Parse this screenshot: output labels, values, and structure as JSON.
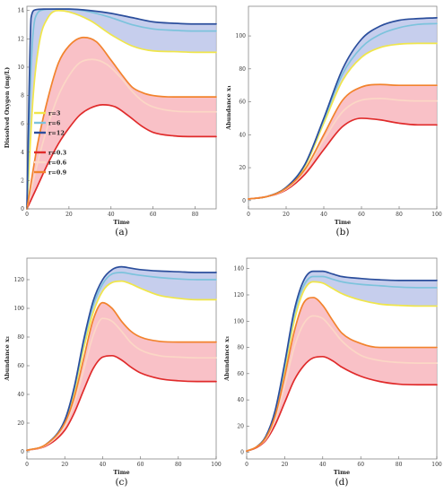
{
  "colors": {
    "r3": "#f0e64a",
    "r6": "#7cc3dc",
    "r12": "#2b4e9c",
    "r03": "#e02b2b",
    "r06": "#fbd7c6",
    "r09": "#f2832d",
    "fill_high": "#bcc6ea",
    "fill_low": "#f8b6bd",
    "frame": "#888888"
  },
  "chart_data": [
    {
      "type": "line",
      "caption": "(a)",
      "xlabel": "Time",
      "ylabel": "Dissolved Oxygen (mg/L)",
      "xlim": [
        0,
        90
      ],
      "ylim": [
        0,
        14.3
      ],
      "xticks": [
        0,
        20,
        40,
        60,
        80
      ],
      "yticks": [
        0,
        2,
        4,
        6,
        8,
        10,
        12,
        14
      ],
      "legend": {
        "position": "left-middle",
        "entries": [
          {
            "label": "r=3",
            "color": "#f0e64a"
          },
          {
            "label": "r=6",
            "color": "#7cc3dc"
          },
          {
            "label": "r=12",
            "color": "#2b4e9c"
          },
          {
            "label": "r=0.3",
            "color": "#e02b2b"
          },
          {
            "label": "r=0.6",
            "color": "#fbd7c6"
          },
          {
            "label": "r=0.9",
            "color": "#f2832d"
          }
        ]
      },
      "bands": [
        {
          "upper": "r=12",
          "lower": "r=3",
          "color": "#bcc6ea"
        },
        {
          "upper": "r=0.9",
          "lower": "r=0.3",
          "color": "#f8b6bd"
        }
      ],
      "series": [
        {
          "name": "r=12",
          "color": "#2b4e9c",
          "x": [
            0,
            1,
            2,
            4,
            8,
            20,
            30,
            40,
            50,
            60,
            70,
            80,
            90
          ],
          "values": [
            0,
            8,
            13.5,
            14.05,
            14.1,
            14.1,
            14.0,
            13.8,
            13.5,
            13.2,
            13.1,
            13.05,
            13.05
          ]
        },
        {
          "name": "r=6",
          "color": "#7cc3dc",
          "x": [
            0,
            2,
            4,
            8,
            14,
            20,
            30,
            40,
            50,
            60,
            70,
            80,
            90
          ],
          "values": [
            0,
            10.0,
            13.5,
            14.05,
            14.1,
            14.1,
            13.9,
            13.5,
            13.0,
            12.7,
            12.6,
            12.55,
            12.55
          ]
        },
        {
          "name": "r=3",
          "color": "#f0e64a",
          "x": [
            0,
            3,
            6,
            10,
            15,
            20,
            30,
            40,
            50,
            60,
            70,
            80,
            90
          ],
          "values": [
            0,
            8.0,
            11.8,
            13.5,
            14.0,
            13.9,
            13.3,
            12.3,
            11.5,
            11.15,
            11.1,
            11.05,
            11.05
          ]
        },
        {
          "name": "r=0.9",
          "color": "#f2832d",
          "x": [
            0,
            5,
            10,
            15,
            20,
            27,
            33,
            40,
            45,
            50,
            55,
            60,
            70,
            80,
            90
          ],
          "values": [
            0,
            4.5,
            7.8,
            10.3,
            11.5,
            12.1,
            11.8,
            10.5,
            9.5,
            8.6,
            8.2,
            8.0,
            7.9,
            7.9,
            7.9
          ]
        },
        {
          "name": "r=0.6",
          "color": "#fbd7c6",
          "x": [
            0,
            5,
            10,
            15,
            20,
            25,
            31,
            38,
            45,
            50,
            55,
            60,
            70,
            80,
            90
          ],
          "values": [
            0,
            3.2,
            5.9,
            8.0,
            9.4,
            10.3,
            10.55,
            10.2,
            9.2,
            8.3,
            7.6,
            7.2,
            6.9,
            6.85,
            6.85
          ]
        },
        {
          "name": "r=0.3",
          "color": "#e02b2b",
          "x": [
            0,
            5,
            10,
            15,
            20,
            25,
            30,
            36,
            42,
            48,
            55,
            60,
            70,
            80,
            90
          ],
          "values": [
            0,
            1.6,
            3.2,
            4.6,
            5.7,
            6.6,
            7.1,
            7.35,
            7.2,
            6.6,
            5.8,
            5.4,
            5.15,
            5.1,
            5.1
          ]
        }
      ]
    },
    {
      "type": "line",
      "caption": "(b)",
      "xlabel": "Time",
      "ylabel": "Abundance x₁",
      "xlim": [
        0,
        100
      ],
      "ylim": [
        -5,
        118
      ],
      "xticks": [
        0,
        20,
        40,
        60,
        80,
        100
      ],
      "yticks": [
        0,
        20,
        40,
        60,
        80,
        100
      ],
      "bands": [
        {
          "upper": "r=12",
          "lower": "r=3",
          "color": "#bcc6ea"
        },
        {
          "upper": "r=0.9",
          "lower": "r=0.3",
          "color": "#f8b6bd"
        }
      ],
      "series": [
        {
          "name": "r=12",
          "color": "#2b4e9c",
          "x": [
            0,
            10,
            20,
            30,
            40,
            50,
            60,
            70,
            80,
            90,
            100
          ],
          "values": [
            1,
            2.5,
            8,
            22,
            50,
            80,
            98,
            106,
            109.5,
            110.5,
            111
          ]
        },
        {
          "name": "r=6",
          "color": "#7cc3dc",
          "x": [
            0,
            10,
            20,
            30,
            40,
            50,
            60,
            70,
            80,
            90,
            100
          ],
          "values": [
            1,
            2.5,
            8,
            22,
            49,
            77,
            93,
            101,
            105,
            107,
            107.5
          ]
        },
        {
          "name": "r=3",
          "color": "#f0e64a",
          "x": [
            0,
            10,
            20,
            30,
            40,
            50,
            60,
            70,
            80,
            90,
            100
          ],
          "values": [
            1,
            2.5,
            8,
            21,
            47,
            73,
            87,
            93,
            95,
            95.5,
            95.5
          ]
        },
        {
          "name": "r=0.9",
          "color": "#f2832d",
          "x": [
            0,
            10,
            20,
            30,
            40,
            50,
            60,
            70,
            80,
            90,
            100
          ],
          "values": [
            1,
            2.5,
            7.5,
            19,
            40,
            61,
            69,
            70.5,
            70,
            70,
            70
          ]
        },
        {
          "name": "r=0.6",
          "color": "#fbd7c6",
          "x": [
            0,
            10,
            20,
            30,
            40,
            50,
            60,
            70,
            80,
            90,
            100
          ],
          "values": [
            1,
            2.5,
            7,
            18,
            37,
            54,
            61,
            62,
            61,
            60.5,
            60.5
          ]
        },
        {
          "name": "r=0.3",
          "color": "#e02b2b",
          "x": [
            0,
            10,
            20,
            30,
            40,
            50,
            60,
            70,
            80,
            90,
            100
          ],
          "values": [
            1,
            2.5,
            6.5,
            16,
            31,
            45,
            50,
            49,
            47,
            46,
            46
          ]
        }
      ]
    },
    {
      "type": "line",
      "caption": "(c)",
      "xlabel": "Time",
      "ylabel": "Abundance x₂",
      "xlim": [
        0,
        100
      ],
      "ylim": [
        -5,
        135
      ],
      "xticks": [
        0,
        20,
        40,
        60,
        80,
        100
      ],
      "yticks": [
        0,
        20,
        40,
        60,
        80,
        100,
        120
      ],
      "bands": [
        {
          "upper": "r=12",
          "lower": "r=3",
          "color": "#bcc6ea"
        },
        {
          "upper": "r=0.9",
          "lower": "r=0.3",
          "color": "#f8b6bd"
        }
      ],
      "series": [
        {
          "name": "r=12",
          "color": "#2b4e9c",
          "x": [
            0,
            10,
            20,
            25,
            30,
            35,
            40,
            45,
            50,
            55,
            60,
            70,
            80,
            90,
            100
          ],
          "values": [
            1,
            5,
            22,
            45,
            78,
            105,
            120,
            127,
            129,
            128,
            127,
            126,
            125.5,
            125,
            125
          ]
        },
        {
          "name": "r=6",
          "color": "#7cc3dc",
          "x": [
            0,
            10,
            20,
            25,
            30,
            35,
            40,
            45,
            50,
            55,
            60,
            70,
            80,
            90,
            100
          ],
          "values": [
            1,
            5,
            22,
            44,
            76,
            102,
            117,
            124,
            125,
            124,
            123,
            121.5,
            120.5,
            120,
            120
          ]
        },
        {
          "name": "r=3",
          "color": "#f0e64a",
          "x": [
            0,
            10,
            20,
            25,
            30,
            35,
            40,
            45,
            50,
            55,
            60,
            70,
            80,
            90,
            100
          ],
          "values": [
            1,
            5,
            21,
            42,
            72,
            97,
            112,
            118,
            119,
            117,
            114,
            109,
            107,
            106,
            106
          ]
        },
        {
          "name": "r=0.9",
          "color": "#f2832d",
          "x": [
            0,
            10,
            20,
            25,
            30,
            35,
            40,
            45,
            50,
            55,
            60,
            70,
            80,
            90,
            100
          ],
          "values": [
            1,
            5,
            20,
            38,
            65,
            92,
            104,
            100,
            91,
            84,
            80,
            77,
            76.5,
            76.5,
            76.5
          ]
        },
        {
          "name": "r=0.6",
          "color": "#fbd7c6",
          "x": [
            0,
            10,
            20,
            25,
            30,
            35,
            40,
            45,
            50,
            55,
            60,
            70,
            80,
            90,
            100
          ],
          "values": [
            1,
            4.5,
            18,
            34,
            57,
            81,
            93,
            91,
            84,
            76,
            71,
            67,
            66,
            65.5,
            65.5
          ]
        },
        {
          "name": "r=0.3",
          "color": "#e02b2b",
          "x": [
            0,
            10,
            20,
            25,
            30,
            35,
            40,
            45,
            50,
            55,
            60,
            70,
            80,
            90,
            100
          ],
          "values": [
            1,
            4,
            15,
            27,
            43,
            58,
            66,
            67,
            64,
            59,
            55,
            51,
            49.5,
            49,
            49
          ]
        }
      ]
    },
    {
      "type": "line",
      "caption": "(d)",
      "xlabel": "Time",
      "ylabel": "Abundance x₃",
      "xlim": [
        0,
        100
      ],
      "ylim": [
        -5,
        148
      ],
      "xticks": [
        0,
        20,
        40,
        60,
        80,
        100
      ],
      "yticks": [
        0,
        20,
        40,
        60,
        80,
        100,
        120,
        140
      ],
      "bands": [
        {
          "upper": "r=12",
          "lower": "r=3",
          "color": "#bcc6ea"
        },
        {
          "upper": "r=0.9",
          "lower": "r=0.3",
          "color": "#f8b6bd"
        }
      ],
      "series": [
        {
          "name": "r=12",
          "color": "#2b4e9c",
          "x": [
            0,
            5,
            10,
            15,
            20,
            25,
            30,
            35,
            40,
            45,
            50,
            60,
            70,
            80,
            90,
            100
          ],
          "values": [
            1,
            4,
            12,
            32,
            68,
            108,
            131,
            138,
            138,
            136,
            134,
            132.5,
            131.5,
            131,
            131,
            131
          ]
        },
        {
          "name": "r=6",
          "color": "#7cc3dc",
          "x": [
            0,
            5,
            10,
            15,
            20,
            25,
            30,
            35,
            40,
            45,
            50,
            60,
            70,
            80,
            90,
            100
          ],
          "values": [
            1,
            4,
            12,
            31,
            66,
            105,
            127,
            134,
            134,
            132,
            130,
            128,
            127,
            126,
            125.5,
            125.5
          ]
        },
        {
          "name": "r=3",
          "color": "#f0e64a",
          "x": [
            0,
            5,
            10,
            15,
            20,
            25,
            30,
            35,
            40,
            45,
            50,
            60,
            70,
            80,
            90,
            100
          ],
          "values": [
            1,
            4,
            12,
            30,
            63,
            100,
            123,
            130,
            129,
            125,
            121,
            116,
            113,
            112,
            111.5,
            111.5
          ]
        },
        {
          "name": "r=0.9",
          "color": "#f2832d",
          "x": [
            0,
            5,
            10,
            15,
            20,
            25,
            30,
            35,
            40,
            45,
            50,
            60,
            70,
            80,
            90,
            100
          ],
          "values": [
            1,
            4,
            11,
            28,
            58,
            92,
            114,
            118,
            112,
            101,
            91,
            83,
            80,
            80,
            80,
            80
          ]
        },
        {
          "name": "r=0.6",
          "color": "#fbd7c6",
          "x": [
            0,
            5,
            10,
            15,
            20,
            25,
            30,
            35,
            40,
            45,
            50,
            60,
            70,
            80,
            90,
            100
          ],
          "values": [
            1,
            4,
            10,
            25,
            51,
            80,
            98,
            104,
            102,
            94,
            85,
            74,
            70,
            68.5,
            68,
            68
          ]
        },
        {
          "name": "r=0.3",
          "color": "#e02b2b",
          "x": [
            0,
            5,
            10,
            15,
            20,
            25,
            30,
            35,
            40,
            45,
            50,
            60,
            70,
            80,
            90,
            100
          ],
          "values": [
            1,
            3.5,
            9,
            21,
            38,
            55,
            66,
            72,
            73,
            70,
            65,
            58,
            54,
            52,
            51.5,
            51.5
          ]
        }
      ]
    }
  ]
}
